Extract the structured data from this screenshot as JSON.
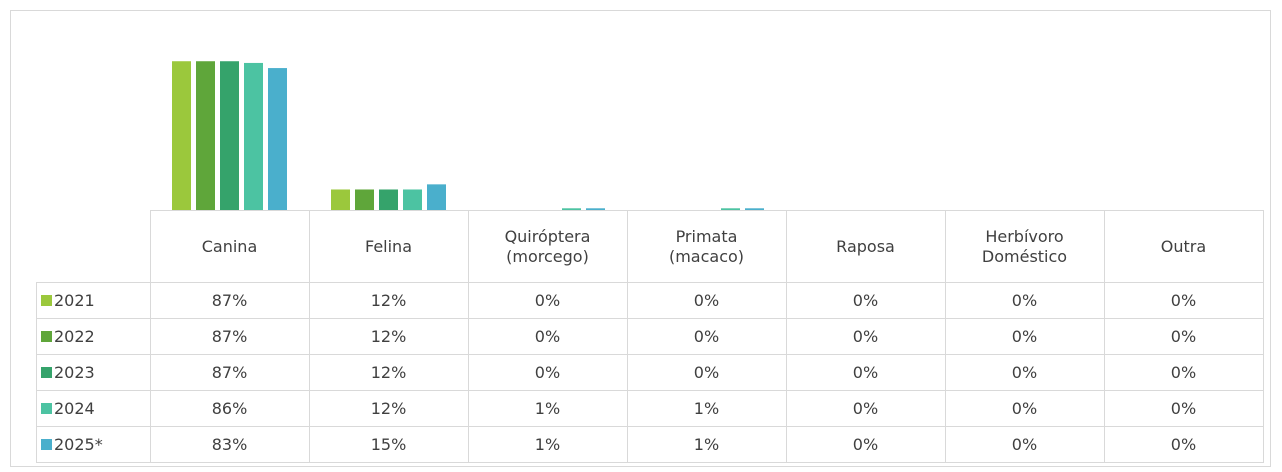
{
  "chart_data": {
    "type": "bar",
    "categories": [
      "Canina",
      "Felina",
      "Quiróptera (morcego)",
      "Primata (macaco)",
      "Raposa",
      "Herbívoro Doméstico",
      "Outra"
    ],
    "series": [
      {
        "name": "2021",
        "color": "#9bc83c",
        "values": [
          87,
          12,
          0,
          0,
          0,
          0,
          0
        ],
        "value_labels": [
          "87%",
          "12%",
          "0%",
          "0%",
          "0%",
          "0%",
          "0%"
        ]
      },
      {
        "name": "2022",
        "color": "#5fa63a",
        "values": [
          87,
          12,
          0,
          0,
          0,
          0,
          0
        ],
        "value_labels": [
          "87%",
          "12%",
          "0%",
          "0%",
          "0%",
          "0%",
          "0%"
        ]
      },
      {
        "name": "2023",
        "color": "#35a36b",
        "values": [
          87,
          12,
          0,
          0,
          0,
          0,
          0
        ],
        "value_labels": [
          "87%",
          "12%",
          "0%",
          "0%",
          "0%",
          "0%",
          "0%"
        ]
      },
      {
        "name": "2024",
        "color": "#4cc3a2",
        "values": [
          86,
          12,
          1,
          1,
          0,
          0,
          0
        ],
        "value_labels": [
          "86%",
          "12%",
          "1%",
          "1%",
          "0%",
          "0%",
          "0%"
        ]
      },
      {
        "name": "2025*",
        "color": "#4aafcc",
        "values": [
          83,
          15,
          1,
          1,
          0,
          0,
          0
        ],
        "value_labels": [
          "83%",
          "15%",
          "1%",
          "1%",
          "0%",
          "0%",
          "0%"
        ]
      }
    ],
    "ylim": [
      0,
      100
    ]
  }
}
